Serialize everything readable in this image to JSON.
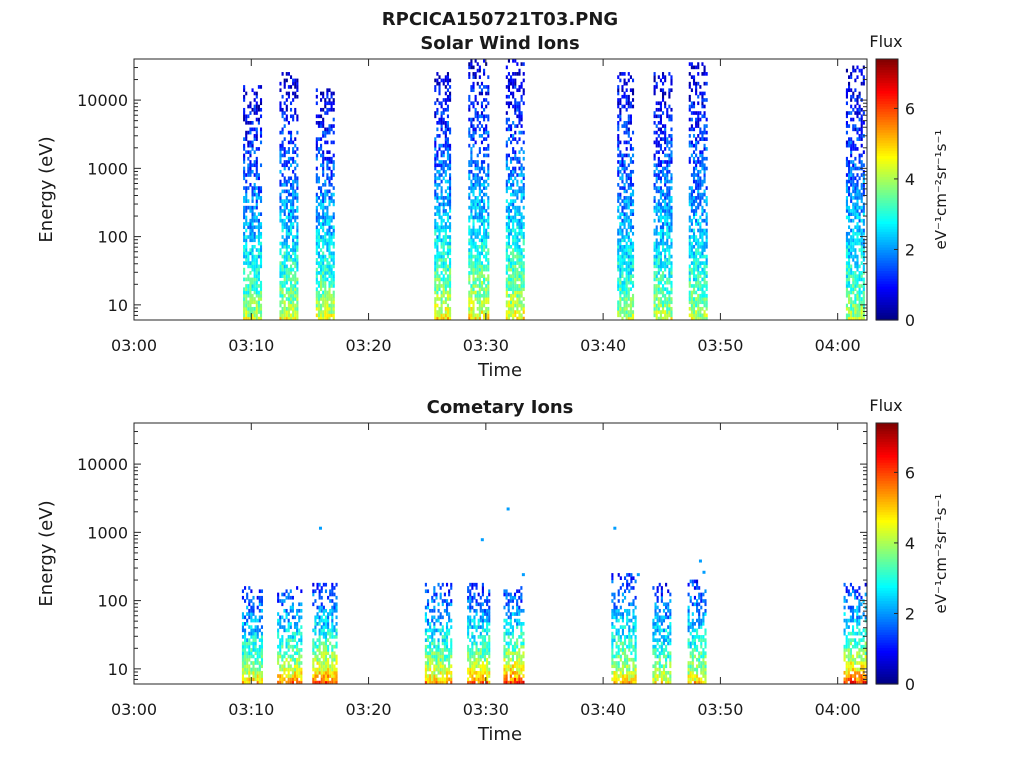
{
  "figure_title": "RPCICA150721T03.PNG",
  "colors": {
    "text": "#1a1a1a",
    "axis": "#262626"
  },
  "colormap": [
    "#000080",
    "#0000ff",
    "#0080ff",
    "#00ffff",
    "#80ff80",
    "#ffff00",
    "#ff8000",
    "#ff0000",
    "#800000"
  ],
  "chart_data": [
    {
      "type": "heatmap",
      "title": "Solar Wind Ions",
      "xlabel": "Time",
      "ylabel": "Energy (eV)",
      "x_unit": "minutes after 03:00",
      "xlim": [
        0,
        62.5
      ],
      "xticks": [
        0,
        10,
        20,
        30,
        40,
        50,
        60
      ],
      "xtick_labels": [
        "03:00",
        "03:10",
        "03:20",
        "03:30",
        "03:40",
        "03:50",
        "04:00"
      ],
      "y_scale": "log",
      "ylim": [
        6,
        40000
      ],
      "yticks": [
        10,
        100,
        1000,
        10000
      ],
      "ytick_labels": [
        "10",
        "100",
        "1000",
        "10000"
      ],
      "colorbar": {
        "label": "Flux",
        "unit_label": "eV⁻¹cm⁻²sr⁻¹s⁻¹",
        "range": [
          0,
          7.4
        ],
        "ticks": [
          0,
          2,
          4,
          6
        ],
        "tick_labels": [
          "0",
          "2",
          "4",
          "6"
        ]
      },
      "bursts": [
        {
          "t_start": 9.3,
          "t_end": 10.9,
          "e_min": 6,
          "e_max": 16000,
          "flux_low_energy": 4.3,
          "flux_high_energy": 0.6
        },
        {
          "t_start": 12.4,
          "t_end": 13.9,
          "e_min": 6,
          "e_max": 25000,
          "flux_low_energy": 4.5,
          "flux_high_energy": 0.6
        },
        {
          "t_start": 15.5,
          "t_end": 17.1,
          "e_min": 6,
          "e_max": 14000,
          "flux_low_energy": 4.6,
          "flux_high_energy": 0.6
        },
        {
          "t_start": 25.6,
          "t_end": 27.0,
          "e_min": 6,
          "e_max": 25000,
          "flux_low_energy": 4.8,
          "flux_high_energy": 0.6
        },
        {
          "t_start": 28.5,
          "t_end": 30.2,
          "e_min": 6,
          "e_max": 40000,
          "flux_low_energy": 4.8,
          "flux_high_energy": 0.6
        },
        {
          "t_start": 31.7,
          "t_end": 33.2,
          "e_min": 6,
          "e_max": 40000,
          "flux_low_energy": 4.8,
          "flux_high_energy": 0.6
        },
        {
          "t_start": 41.2,
          "t_end": 42.6,
          "e_min": 6,
          "e_max": 24000,
          "flux_low_energy": 4.2,
          "flux_high_energy": 0.6
        },
        {
          "t_start": 44.3,
          "t_end": 45.8,
          "e_min": 6,
          "e_max": 24000,
          "flux_low_energy": 4.3,
          "flux_high_energy": 0.6
        },
        {
          "t_start": 47.3,
          "t_end": 48.9,
          "e_min": 6,
          "e_max": 35000,
          "flux_low_energy": 4.2,
          "flux_high_energy": 0.6
        },
        {
          "t_start": 60.7,
          "t_end": 62.3,
          "e_min": 6,
          "e_max": 30000,
          "flux_low_energy": 4.2,
          "flux_high_energy": 0.6
        }
      ]
    },
    {
      "type": "heatmap",
      "title": "Cometary Ions",
      "xlabel": "Time",
      "ylabel": "Energy (eV)",
      "x_unit": "minutes after 03:00",
      "xlim": [
        0,
        62.5
      ],
      "xticks": [
        0,
        10,
        20,
        30,
        40,
        50,
        60
      ],
      "xtick_labels": [
        "03:00",
        "03:10",
        "03:20",
        "03:30",
        "03:40",
        "03:50",
        "04:00"
      ],
      "y_scale": "log",
      "ylim": [
        6,
        40000
      ],
      "yticks": [
        10,
        100,
        1000,
        10000
      ],
      "ytick_labels": [
        "10",
        "100",
        "1000",
        "10000"
      ],
      "colorbar": {
        "label": "Flux",
        "unit_label": "eV⁻¹cm⁻²sr⁻¹s⁻¹",
        "range": [
          0,
          7.4
        ],
        "ticks": [
          0,
          2,
          4,
          6
        ],
        "tick_labels": [
          "0",
          "2",
          "4",
          "6"
        ]
      },
      "bursts": [
        {
          "t_start": 9.2,
          "t_end": 10.9,
          "e_min": 6,
          "e_max": 150,
          "flux_low_energy": 5.2,
          "flux_high_energy": 1.2
        },
        {
          "t_start": 12.2,
          "t_end": 14.2,
          "e_min": 6,
          "e_max": 150,
          "flux_low_energy": 5.6,
          "flux_high_energy": 1.2
        },
        {
          "t_start": 15.2,
          "t_end": 17.3,
          "e_min": 6,
          "e_max": 170,
          "flux_low_energy": 6.0,
          "flux_high_energy": 1.2
        },
        {
          "t_start": 24.8,
          "t_end": 27.0,
          "e_min": 6,
          "e_max": 170,
          "flux_low_energy": 5.4,
          "flux_high_energy": 1.2
        },
        {
          "t_start": 28.4,
          "t_end": 30.2,
          "e_min": 6,
          "e_max": 170,
          "flux_low_energy": 5.6,
          "flux_high_energy": 1.2
        },
        {
          "t_start": 31.5,
          "t_end": 33.3,
          "e_min": 6,
          "e_max": 150,
          "flux_low_energy": 6.2,
          "flux_high_energy": 1.2
        },
        {
          "t_start": 40.7,
          "t_end": 42.7,
          "e_min": 6,
          "e_max": 250,
          "flux_low_energy": 5.2,
          "flux_high_energy": 1.2
        },
        {
          "t_start": 44.2,
          "t_end": 45.7,
          "e_min": 6,
          "e_max": 170,
          "flux_low_energy": 4.8,
          "flux_high_energy": 1.2
        },
        {
          "t_start": 47.2,
          "t_end": 48.8,
          "e_min": 6,
          "e_max": 200,
          "flux_low_energy": 5.0,
          "flux_high_energy": 1.2
        },
        {
          "t_start": 60.5,
          "t_end": 62.4,
          "e_min": 6,
          "e_max": 170,
          "flux_low_energy": 6.2,
          "flux_high_energy": 1.2
        }
      ],
      "isolated_points": [
        {
          "t": 15.9,
          "energy": 1150
        },
        {
          "t": 29.7,
          "energy": 780
        },
        {
          "t": 31.9,
          "energy": 2200
        },
        {
          "t": 33.2,
          "energy": 240
        },
        {
          "t": 41.0,
          "energy": 1150
        },
        {
          "t": 43.0,
          "energy": 240
        },
        {
          "t": 48.3,
          "energy": 380
        },
        {
          "t": 48.6,
          "energy": 260
        }
      ]
    }
  ]
}
